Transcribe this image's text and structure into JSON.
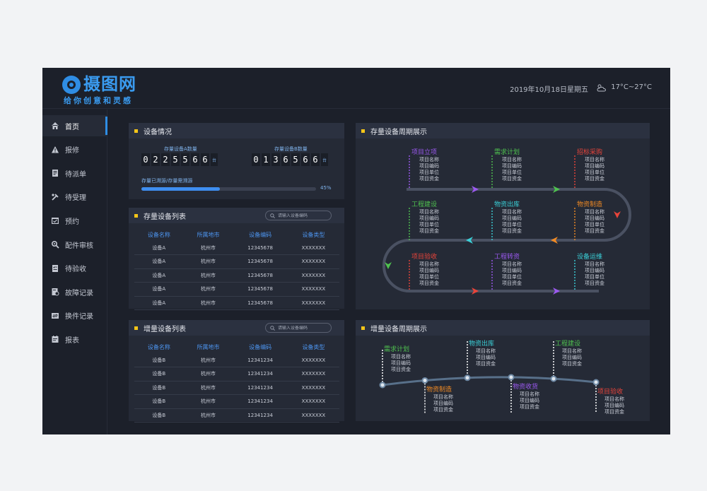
{
  "brand": {
    "name": "摄图网",
    "slogan": "给你创意和灵感"
  },
  "header": {
    "date": "2019年10月18日星期五",
    "weather": "17°C~27°C",
    "weather_icon": "cloud-sun-icon"
  },
  "sidebar": {
    "items": [
      {
        "label": "首页",
        "icon": "home-icon"
      },
      {
        "label": "报修",
        "icon": "warning-icon"
      },
      {
        "label": "待派单",
        "icon": "document-icon"
      },
      {
        "label": "待受理",
        "icon": "tools-icon"
      },
      {
        "label": "预约",
        "icon": "calendar-check-icon"
      },
      {
        "label": "配件审核",
        "icon": "gear-search-icon"
      },
      {
        "label": "待验收",
        "icon": "checklist-icon"
      },
      {
        "label": "故障记录",
        "icon": "record-icon"
      },
      {
        "label": "换件记录",
        "icon": "swap-icon"
      },
      {
        "label": "报表",
        "icon": "report-icon"
      }
    ]
  },
  "equipment": {
    "title": "设备情况",
    "a_label": "存量设备A数量",
    "a_digits": [
      "0",
      "2",
      "2",
      "5",
      "5",
      "6",
      "6"
    ],
    "b_label": "存量设备B数量",
    "b_digits": [
      "0",
      "1",
      "3",
      "6",
      "5",
      "6",
      "6"
    ],
    "unit": "台",
    "progress_label": "存量已溯源/存量需溯源",
    "progress_value": 0.45,
    "progress_text": "45%"
  },
  "stock_list": {
    "title": "存量设备列表",
    "search_placeholder": "请输入设备编码",
    "columns": [
      "设备名称",
      "所属地市",
      "设备编码",
      "设备类型"
    ],
    "rows": [
      [
        "设备A",
        "杭州市",
        "12345678",
        "XXXXXXX"
      ],
      [
        "设备A",
        "杭州市",
        "12345678",
        "XXXXXXX"
      ],
      [
        "设备A",
        "杭州市",
        "12345678",
        "XXXXXXX"
      ],
      [
        "设备A",
        "杭州市",
        "12345678",
        "XXXXXXX"
      ],
      [
        "设备A",
        "杭州市",
        "12345678",
        "XXXXXXX"
      ]
    ]
  },
  "new_list": {
    "title": "增量设备列表",
    "search_placeholder": "请输入设备编码",
    "columns": [
      "设备名称",
      "所属地市",
      "设备编码",
      "设备类型"
    ],
    "rows": [
      [
        "设备B",
        "杭州市",
        "12341234",
        "XXXXXXX"
      ],
      [
        "设备B",
        "杭州市",
        "12341234",
        "XXXXXXX"
      ],
      [
        "设备B",
        "杭州市",
        "12341234",
        "XXXXXXX"
      ],
      [
        "设备B",
        "杭州市",
        "12341234",
        "XXXXXXX"
      ],
      [
        "设备B",
        "杭州市",
        "12341234",
        "XXXXXXX"
      ]
    ]
  },
  "stock_cycle": {
    "title": "存量设备周期展示",
    "stages": [
      {
        "title": "项目立项",
        "color": "#9b59f0",
        "items": [
          "项目名称",
          "项目编码",
          "项目单位",
          "项目资金"
        ]
      },
      {
        "title": "需求计划",
        "color": "#4fc24f",
        "items": [
          "项目名称",
          "项目编码",
          "项目单位",
          "项目资金"
        ]
      },
      {
        "title": "招标采购",
        "color": "#e8443a",
        "items": [
          "项目名称",
          "项目编码",
          "项目单位",
          "项目资金"
        ]
      },
      {
        "title": "工程建设",
        "color": "#4fc24f",
        "items": [
          "项目名称",
          "项目编码",
          "项目单位",
          "项目资金"
        ]
      },
      {
        "title": "物资出库",
        "color": "#3ad0d8",
        "items": [
          "项目名称",
          "项目编码",
          "项目单位",
          "项目资金"
        ]
      },
      {
        "title": "物资制造",
        "color": "#f08a24",
        "items": [
          "项目名称",
          "项目编码",
          "项目单位",
          "项目资金"
        ]
      },
      {
        "title": "项目验收",
        "color": "#e8443a",
        "items": [
          "项目名称",
          "项目编码",
          "项目单位",
          "项目资金"
        ]
      },
      {
        "title": "工程转资",
        "color": "#9b59f0",
        "items": [
          "项目名称",
          "项目编码",
          "项目单位",
          "项目资金"
        ]
      },
      {
        "title": "设备运维",
        "color": "#3ad0d8",
        "items": [
          "项目名称",
          "项目编码",
          "项目单位",
          "项目资金"
        ]
      }
    ]
  },
  "new_cycle": {
    "title": "增量设备周期展示",
    "stages": [
      {
        "title": "需求计划",
        "color": "#4fc24f",
        "items": [
          "项目名称",
          "项目编码",
          "项目资金"
        ]
      },
      {
        "title": "物资制造",
        "color": "#f08a24",
        "items": [
          "项目名称",
          "项目编码",
          "项目资金"
        ]
      },
      {
        "title": "物资出库",
        "color": "#3ad0d8",
        "items": [
          "项目名称",
          "项目编码",
          "项目资金"
        ]
      },
      {
        "title": "物资收货",
        "color": "#9b59f0",
        "items": [
          "项目名称",
          "项目编码",
          "项目资金"
        ]
      },
      {
        "title": "工程建设",
        "color": "#4fc24f",
        "items": [
          "项目名称",
          "项目编码",
          "项目资金"
        ]
      },
      {
        "title": "项目验收",
        "color": "#e8443a",
        "items": [
          "项目名称",
          "项目编码",
          "项目资金"
        ]
      }
    ]
  }
}
